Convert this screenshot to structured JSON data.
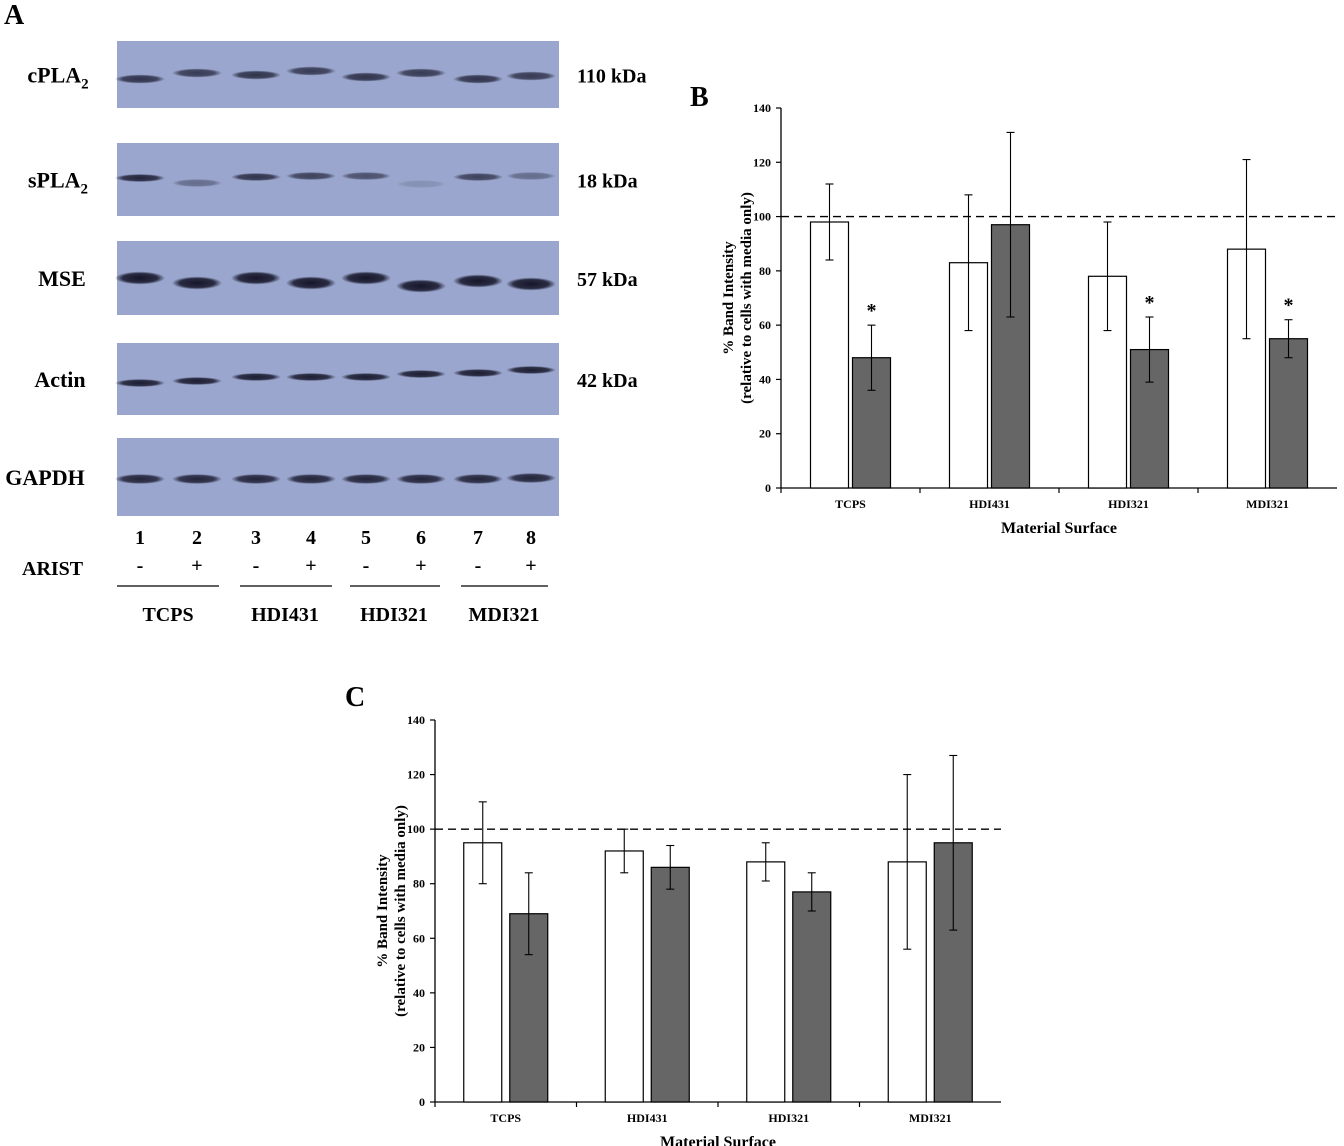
{
  "panel_a": {
    "letter": "A",
    "blots": [
      {
        "label": "cPLA",
        "label_sub": "2",
        "mw": "110 kDa"
      },
      {
        "label": "sPLA",
        "label_sub": "2",
        "mw": "18 kDa"
      },
      {
        "label": "MSE",
        "label_sub": "",
        "mw": "57 kDa"
      },
      {
        "label": "Actin",
        "label_sub": "",
        "mw": "42 kDa"
      },
      {
        "label": "GAPDH",
        "label_sub": "",
        "mw": ""
      }
    ],
    "lane_numbers": [
      "1",
      "2",
      "3",
      "4",
      "5",
      "6",
      "7",
      "8"
    ],
    "arist_label": "ARIST",
    "arist_signs": [
      "-",
      "+",
      "-",
      "+",
      "-",
      "+",
      "-",
      "+"
    ],
    "groups": [
      "TCPS",
      "HDI431",
      "HDI321",
      "MDI321"
    ],
    "band_intensity": [
      [
        0.8,
        0.75,
        0.8,
        0.75,
        0.8,
        0.75,
        0.8,
        0.75
      ],
      [
        0.9,
        0.4,
        0.8,
        0.7,
        0.6,
        0.15,
        0.7,
        0.4
      ],
      [
        1.0,
        1.0,
        1.0,
        1.0,
        1.0,
        1.0,
        1.0,
        1.0
      ],
      [
        0.95,
        0.95,
        0.95,
        0.95,
        0.95,
        0.95,
        0.95,
        0.95
      ],
      [
        0.9,
        0.9,
        0.9,
        0.9,
        0.9,
        0.9,
        0.9,
        0.9
      ]
    ],
    "colors": {
      "membrane": "#9aa6cd",
      "band": "#16162a"
    }
  },
  "chart_data": [
    {
      "panel": "B",
      "type": "bar",
      "categories": [
        "TCPS",
        "HDI431",
        "HDI321",
        "MDI321"
      ],
      "series": [
        {
          "values": [
            98,
            83,
            78,
            88
          ],
          "errors": [
            14,
            25,
            20,
            33
          ],
          "color": "#ffffff"
        },
        {
          "values": [
            48,
            97,
            51,
            55
          ],
          "errors": [
            12,
            34,
            12,
            7
          ],
          "color": "#666666"
        }
      ],
      "significance": [
        [
          "",
          "*"
        ],
        [
          "",
          ""
        ],
        [
          "",
          "*"
        ],
        [
          "",
          "*"
        ]
      ],
      "xlabel": "Material Surface",
      "ylabel": "% Band Intensity",
      "ylabel2": "(relative to cells with media only)",
      "ylim": [
        0,
        140
      ],
      "yticks": [
        0,
        20,
        40,
        60,
        80,
        100,
        120,
        140
      ],
      "reference_line": 100
    },
    {
      "panel": "C",
      "type": "bar",
      "categories": [
        "TCPS",
        "HDI431",
        "HDI321",
        "MDI321"
      ],
      "series": [
        {
          "values": [
            95,
            92,
            88,
            88
          ],
          "errors": [
            15,
            8,
            7,
            32
          ],
          "color": "#ffffff"
        },
        {
          "values": [
            69,
            86,
            77,
            95
          ],
          "errors": [
            15,
            8,
            7,
            32
          ],
          "color": "#666666"
        }
      ],
      "significance": [
        [
          "",
          ""
        ],
        [
          "",
          ""
        ],
        [
          "",
          ""
        ],
        [
          "",
          ""
        ]
      ],
      "xlabel": "Material Surface",
      "ylabel": "% Band Intensity",
      "ylabel2": "(relative to cells with media only)",
      "ylim": [
        0,
        140
      ],
      "yticks": [
        0,
        20,
        40,
        60,
        80,
        100,
        120,
        140
      ],
      "reference_line": 100
    }
  ]
}
